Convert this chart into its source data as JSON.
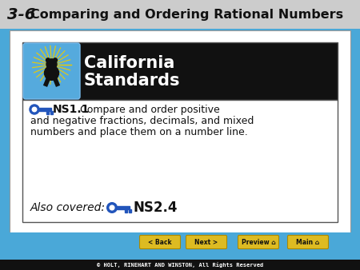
{
  "title_num": "3-6",
  "title_text": "Comparing and Ordering Rational Numbers",
  "bg_color": "#4aa8d8",
  "header_bg": "#111111",
  "header_text_color": "#ffffff",
  "california_line1": "California",
  "california_line2": "Standards",
  "box_bg": "#ffffff",
  "box_border": "#888888",
  "ns1_label": "NS1.1",
  "ns1_desc_line1": "Compare and order positive",
  "ns1_desc_line2": "and negative fractions, decimals, and mixed",
  "ns1_desc_line3": "numbers and place them on a number line.",
  "also_covered": "Also covered:",
  "ns2_label": "NS2.4",
  "footer_text": "© HOLT, RINEHART AND WINSTON, All Rights Reserved",
  "footer_bg": "#111111",
  "footer_text_color": "#ffffff",
  "nav_buttons": [
    "< Back",
    "Next >",
    "Preview  ⌂",
    "Main  ⌂"
  ],
  "nav_bg": "#ddbb22",
  "nav_text": "#000000",
  "key_color": "#2255bb",
  "slide_bg": "#ffffff",
  "title_bg": "#cccccc",
  "icon_bg": "#55aadd"
}
